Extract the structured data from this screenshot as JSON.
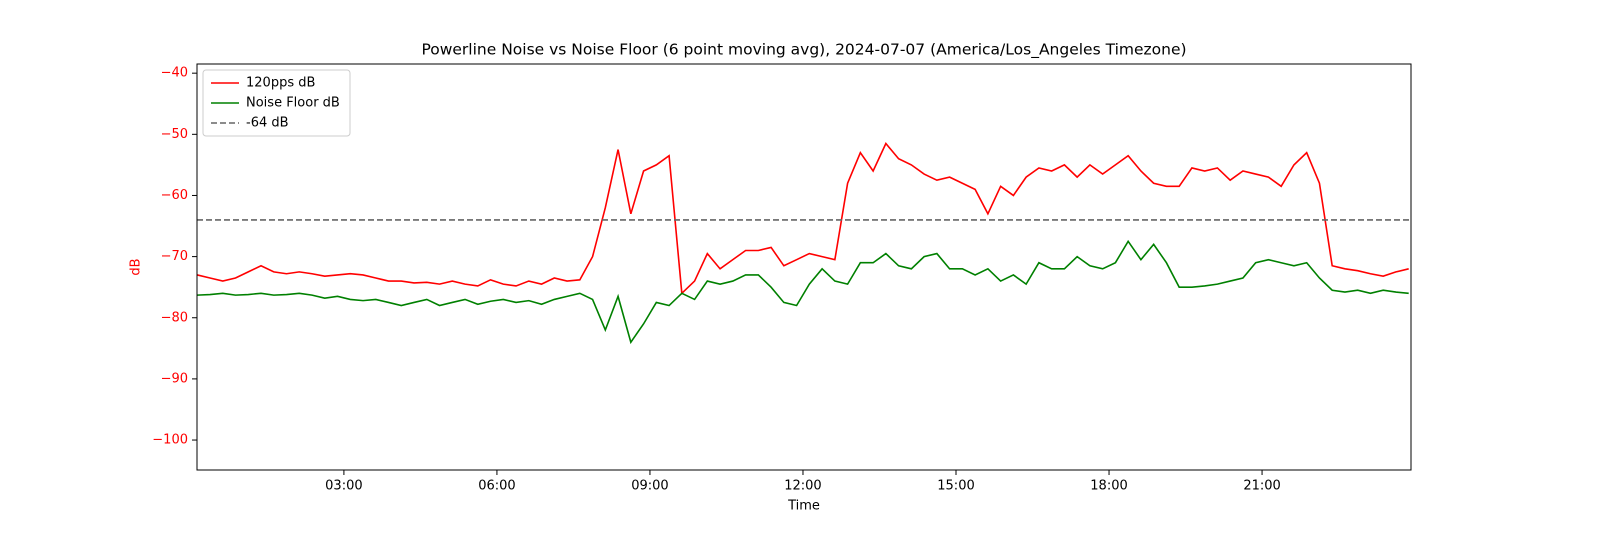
{
  "chart_data": {
    "type": "line",
    "title": "Powerline Noise vs Noise Floor (6 point moving avg), 2024-07-07 (America/Los_Angeles Timezone)",
    "xlabel": "Time",
    "ylabel": "dB",
    "ylabel_color": "#ff0000",
    "xlim": [
      0.12,
      23.92
    ],
    "ylim": [
      -104.9,
      -38.5
    ],
    "xticks": [
      {
        "value": 3,
        "label": "03:00"
      },
      {
        "value": 6,
        "label": "06:00"
      },
      {
        "value": 9,
        "label": "09:00"
      },
      {
        "value": 12,
        "label": "12:00"
      },
      {
        "value": 15,
        "label": "15:00"
      },
      {
        "value": 18,
        "label": "18:00"
      },
      {
        "value": 21,
        "label": "21:00"
      }
    ],
    "yticks": [
      {
        "value": -40,
        "label": "−40"
      },
      {
        "value": -50,
        "label": "−50"
      },
      {
        "value": -60,
        "label": "−60"
      },
      {
        "value": -70,
        "label": "−70"
      },
      {
        "value": -80,
        "label": "−80"
      },
      {
        "value": -90,
        "label": "−90"
      },
      {
        "value": -100,
        "label": "−100"
      }
    ],
    "grid": false,
    "legend": "upper left",
    "x": [
      0.125,
      0.375,
      0.625,
      0.875,
      1.125,
      1.375,
      1.625,
      1.875,
      2.125,
      2.375,
      2.625,
      2.875,
      3.125,
      3.375,
      3.625,
      3.875,
      4.125,
      4.375,
      4.625,
      4.875,
      5.125,
      5.375,
      5.625,
      5.875,
      6.125,
      6.375,
      6.625,
      6.875,
      7.125,
      7.375,
      7.625,
      7.875,
      8.125,
      8.375,
      8.625,
      8.875,
      9.125,
      9.375,
      9.625,
      9.875,
      10.125,
      10.375,
      10.625,
      10.875,
      11.125,
      11.375,
      11.625,
      11.875,
      12.125,
      12.375,
      12.625,
      12.875,
      13.125,
      13.375,
      13.625,
      13.875,
      14.125,
      14.375,
      14.625,
      14.875,
      15.125,
      15.375,
      15.625,
      15.875,
      16.125,
      16.375,
      16.625,
      16.875,
      17.125,
      17.375,
      17.625,
      17.875,
      18.125,
      18.375,
      18.625,
      18.875,
      19.125,
      19.375,
      19.625,
      19.875,
      20.125,
      20.375,
      20.625,
      20.875,
      21.125,
      21.375,
      21.625,
      21.875,
      22.125,
      22.375,
      22.625,
      22.875,
      23.125,
      23.375,
      23.625,
      23.875
    ],
    "series": [
      {
        "name": "120pps dB",
        "color": "#ff0000",
        "values": [
          -73,
          -73.5,
          -74,
          -73.5,
          -72.5,
          -71.5,
          -72.5,
          -72.8,
          -72.5,
          -72.8,
          -73.2,
          -73,
          -72.8,
          -73,
          -73.5,
          -74,
          -74,
          -74.3,
          -74.2,
          -74.5,
          -74,
          -74.5,
          -74.8,
          -73.8,
          -74.5,
          -74.8,
          -74,
          -74.5,
          -73.5,
          -74,
          -73.8,
          -70,
          -62,
          -52.5,
          -63,
          -56,
          -55,
          -53.5,
          -76,
          -74,
          -69.5,
          -72,
          -70.5,
          -69,
          -69,
          -68.5,
          -71.5,
          -70.5,
          -69.5,
          -70,
          -70.5,
          -58,
          -53,
          -56,
          -51.5,
          -54,
          -55,
          -56.5,
          -57.5,
          -57,
          -58,
          -59,
          -63,
          -58.5,
          -60,
          -57,
          -55.5,
          -56,
          -55,
          -57,
          -55,
          -56.5,
          -55,
          -53.5,
          -56,
          -58,
          -58.5,
          -58.5,
          -55.5,
          -56,
          -55.5,
          -57.5,
          -56,
          -56.5,
          -57,
          -58.5,
          -55,
          -53,
          -58,
          -71.5,
          -72,
          -72.3,
          -72.8,
          -73.2,
          -72.5,
          -72
        ]
      },
      {
        "name": "Noise Floor dB",
        "color": "#008000",
        "values": [
          -76.3,
          -76.2,
          -76,
          -76.3,
          -76.2,
          -76,
          -76.3,
          -76.2,
          -76,
          -76.3,
          -76.8,
          -76.5,
          -77,
          -77.2,
          -77,
          -77.5,
          -78,
          -77.5,
          -77,
          -78,
          -77.5,
          -77,
          -77.8,
          -77.3,
          -77,
          -77.5,
          -77.2,
          -77.8,
          -77,
          -76.5,
          -76,
          -77,
          -82,
          -76.5,
          -84,
          -81,
          -77.5,
          -78,
          -76,
          -77,
          -74,
          -74.5,
          -74,
          -73,
          -73,
          -75,
          -77.5,
          -78,
          -74.5,
          -72,
          -74,
          -74.5,
          -71,
          -71,
          -69.5,
          -71.5,
          -72,
          -70,
          -69.5,
          -72,
          -72,
          -73,
          -72,
          -74,
          -73,
          -74.5,
          -71,
          -72,
          -72,
          -70,
          -71.5,
          -72,
          -71,
          -67.5,
          -70.5,
          -68,
          -71,
          -75,
          -75,
          -74.8,
          -74.5,
          -74,
          -73.5,
          -71,
          -70.5,
          -71,
          -71.5,
          -71,
          -73.5,
          -75.5,
          -75.8,
          -75.5,
          -76,
          -75.5,
          -75.8,
          -76
        ]
      }
    ],
    "hline": {
      "name": "-64 dB",
      "value": -64,
      "color": "#666666"
    }
  }
}
